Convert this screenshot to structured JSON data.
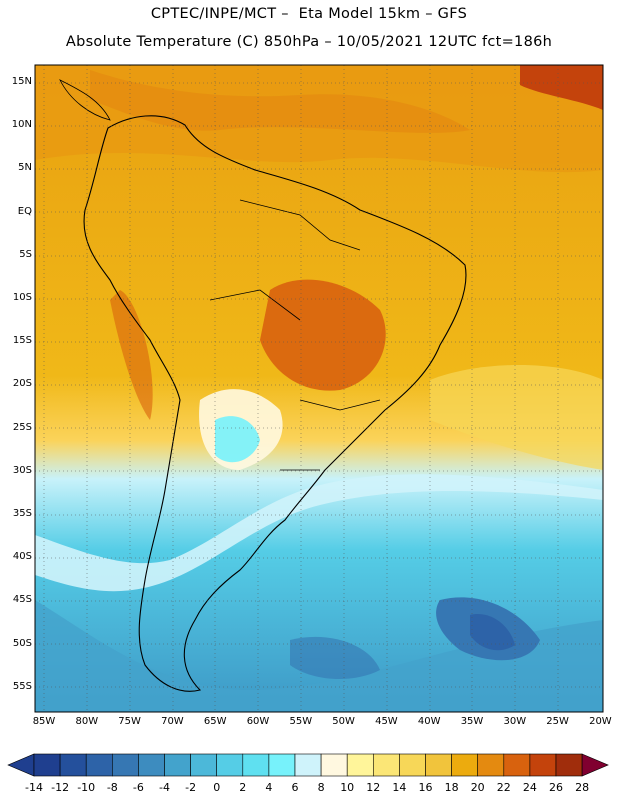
{
  "header": {
    "line1": "CPTEC/INPE/MCT –  Eta Model 15km – GFS",
    "line2": "Absolute Temperature (C) 850hPa – 10/05/2021 12UTC fct=186h"
  },
  "lat_labels": [
    "15N",
    "10N",
    "5N",
    "EQ",
    "5S",
    "10S",
    "15S",
    "20S",
    "25S",
    "30S",
    "35S",
    "40S",
    "45S",
    "50S",
    "55S"
  ],
  "lon_labels": [
    "85W",
    "80W",
    "75W",
    "70W",
    "65W",
    "60W",
    "55W",
    "50W",
    "45W",
    "40W",
    "35W",
    "30W",
    "25W",
    "20W"
  ],
  "colorbar": {
    "labels": [
      "-14",
      "-12",
      "-10",
      "-8",
      "-6",
      "-4",
      "-2",
      "0",
      "2",
      "4",
      "6",
      "8",
      "10",
      "12",
      "14",
      "16",
      "18",
      "20",
      "22",
      "24",
      "26",
      "28"
    ],
    "colors": [
      "#1f3f8f",
      "#24509c",
      "#2d63a8",
      "#3677b3",
      "#3d8cbf",
      "#43a3cc",
      "#4cb8d9",
      "#55cde6",
      "#5fe0f0",
      "#77f2fb",
      "#cff3fb",
      "#fff8e0",
      "#fff59a",
      "#fbe676",
      "#f7d758",
      "#f1c43c",
      "#ecab0e",
      "#e48a10",
      "#d8620e",
      "#c4430c",
      "#a02d0c",
      "#7d1d10",
      "#800030"
    ]
  }
}
